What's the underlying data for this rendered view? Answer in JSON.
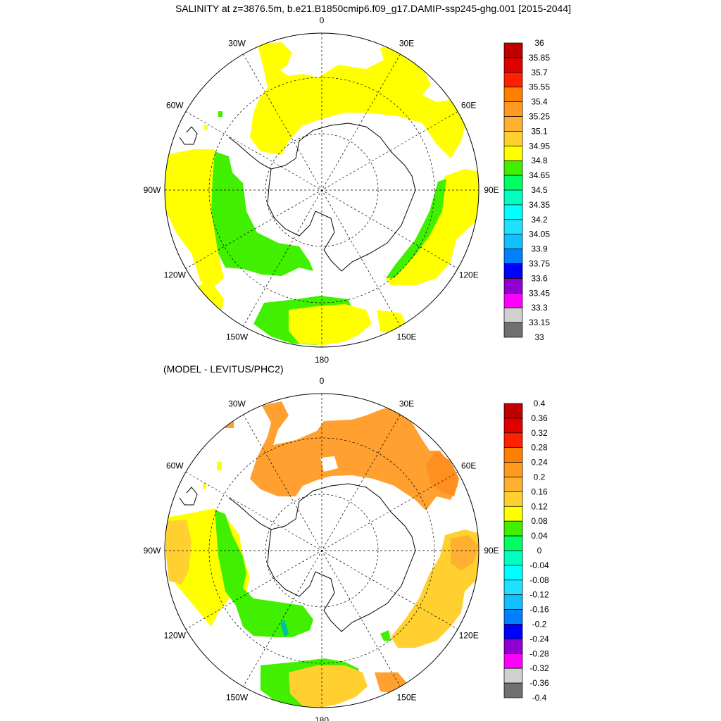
{
  "title": "SALINITY at z=3876.5m, b.e21.B1850cmip6.f09_g17.DAMIP-ssp245-ghg.001 [2015-2044]",
  "subtitle": "(MODEL - LEVITUS/PHC2)",
  "longitude_labels": [
    "0",
    "30E",
    "60E",
    "90E",
    "120E",
    "150E",
    "180",
    "150W",
    "120W",
    "90W",
    "60W",
    "30W"
  ],
  "panels": [
    {
      "name": "salinity",
      "colorbar": {
        "labels": [
          "36",
          "35.85",
          "35.7",
          "35.55",
          "35.4",
          "35.25",
          "35.1",
          "34.95",
          "34.8",
          "34.65",
          "34.5",
          "34.35",
          "34.2",
          "34.05",
          "33.9",
          "33.75",
          "33.6",
          "33.45",
          "33.3",
          "33.15",
          "33"
        ],
        "colors": [
          "#c00000",
          "#e00000",
          "#ff2000",
          "#ff8000",
          "#ff9a20",
          "#ffb030",
          "#ffd030",
          "#ffff00",
          "#40f000",
          "#00ff60",
          "#00ffc0",
          "#00ffff",
          "#20e0ff",
          "#10c0ff",
          "#0080ff",
          "#0000ff",
          "#9000d0",
          "#ff00ff",
          "#d0d0d0",
          "#707070"
        ]
      }
    },
    {
      "name": "difference",
      "colorbar": {
        "labels": [
          "0.4",
          "0.36",
          "0.32",
          "0.28",
          "0.24",
          "0.2",
          "0.16",
          "0.12",
          "0.08",
          "0.04",
          "0",
          "-0.04",
          "-0.08",
          "-0.12",
          "-0.16",
          "-0.2",
          "-0.24",
          "-0.28",
          "-0.32",
          "-0.36",
          "-0.4"
        ],
        "colors": [
          "#c00000",
          "#e00000",
          "#ff2000",
          "#ff8000",
          "#ff9a20",
          "#ffb030",
          "#ffd030",
          "#ffff00",
          "#40f000",
          "#00ff60",
          "#00ffc0",
          "#00ffff",
          "#20e0ff",
          "#10c0ff",
          "#0080ff",
          "#0000ff",
          "#9000d0",
          "#ff00ff",
          "#d0d0d0",
          "#707070"
        ]
      }
    }
  ]
}
